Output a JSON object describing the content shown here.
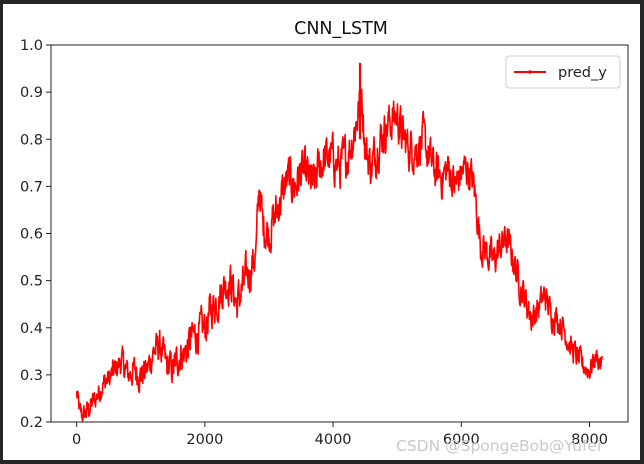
{
  "chart_data": {
    "type": "line",
    "title": "CNN_LSTM",
    "xlabel": "",
    "ylabel": "",
    "xlim": [
      -400,
      8600
    ],
    "ylim": [
      0.2,
      1.0
    ],
    "xticks": [
      0,
      2000,
      4000,
      6000,
      8000
    ],
    "yticks": [
      0.2,
      0.3,
      0.4,
      0.5,
      0.6,
      0.7,
      0.8,
      0.9,
      1.0
    ],
    "legend": {
      "position": "top-right"
    },
    "grid": false,
    "series": [
      {
        "name": "pred_y",
        "color": "#ff0000",
        "marker": ".",
        "keypoints": [
          [
            0,
            0.26
          ],
          [
            50,
            0.22
          ],
          [
            100,
            0.21
          ],
          [
            200,
            0.23
          ],
          [
            300,
            0.25
          ],
          [
            400,
            0.28
          ],
          [
            500,
            0.29
          ],
          [
            600,
            0.31
          ],
          [
            700,
            0.33
          ],
          [
            800,
            0.3
          ],
          [
            900,
            0.31
          ],
          [
            1000,
            0.3
          ],
          [
            1100,
            0.31
          ],
          [
            1200,
            0.35
          ],
          [
            1300,
            0.36
          ],
          [
            1400,
            0.32
          ],
          [
            1500,
            0.31
          ],
          [
            1600,
            0.34
          ],
          [
            1700,
            0.35
          ],
          [
            1800,
            0.38
          ],
          [
            1900,
            0.39
          ],
          [
            2000,
            0.4
          ],
          [
            2100,
            0.44
          ],
          [
            2200,
            0.46
          ],
          [
            2300,
            0.49
          ],
          [
            2400,
            0.5
          ],
          [
            2500,
            0.45
          ],
          [
            2600,
            0.49
          ],
          [
            2700,
            0.52
          ],
          [
            2800,
            0.56
          ],
          [
            2850,
            0.71
          ],
          [
            2900,
            0.62
          ],
          [
            3000,
            0.6
          ],
          [
            3100,
            0.64
          ],
          [
            3200,
            0.68
          ],
          [
            3300,
            0.72
          ],
          [
            3400,
            0.7
          ],
          [
            3500,
            0.73
          ],
          [
            3600,
            0.72
          ],
          [
            3700,
            0.7
          ],
          [
            3800,
            0.75
          ],
          [
            3900,
            0.76
          ],
          [
            4000,
            0.76
          ],
          [
            4100,
            0.74
          ],
          [
            4200,
            0.76
          ],
          [
            4300,
            0.8
          ],
          [
            4400,
            0.86
          ],
          [
            4450,
            0.9
          ],
          [
            4500,
            0.78
          ],
          [
            4600,
            0.74
          ],
          [
            4700,
            0.79
          ],
          [
            4800,
            0.82
          ],
          [
            4900,
            0.84
          ],
          [
            5000,
            0.85
          ],
          [
            5100,
            0.8
          ],
          [
            5200,
            0.78
          ],
          [
            5300,
            0.78
          ],
          [
            5400,
            0.8
          ],
          [
            5500,
            0.76
          ],
          [
            5600,
            0.73
          ],
          [
            5700,
            0.72
          ],
          [
            5800,
            0.74
          ],
          [
            5900,
            0.7
          ],
          [
            6000,
            0.73
          ],
          [
            6100,
            0.74
          ],
          [
            6200,
            0.7
          ],
          [
            6300,
            0.58
          ],
          [
            6400,
            0.56
          ],
          [
            6500,
            0.54
          ],
          [
            6600,
            0.57
          ],
          [
            6700,
            0.59
          ],
          [
            6800,
            0.55
          ],
          [
            6900,
            0.5
          ],
          [
            7000,
            0.46
          ],
          [
            7100,
            0.42
          ],
          [
            7200,
            0.44
          ],
          [
            7300,
            0.47
          ],
          [
            7400,
            0.43
          ],
          [
            7500,
            0.42
          ],
          [
            7600,
            0.4
          ],
          [
            7700,
            0.36
          ],
          [
            7800,
            0.34
          ],
          [
            7900,
            0.32
          ],
          [
            8000,
            0.31
          ],
          [
            8100,
            0.34
          ],
          [
            8150,
            0.33
          ],
          [
            8200,
            0.32
          ]
        ]
      }
    ]
  },
  "watermark": "CSDN @SpongeBob@Yufei"
}
